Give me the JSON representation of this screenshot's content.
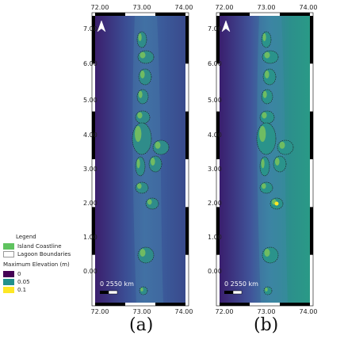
{
  "legend": {
    "title": "Legend",
    "coastline_label": "Island Coastline",
    "lagoon_label": "Lagoon Boundaries",
    "elevation_title": "Maximum Elevation (m)",
    "levels": [
      {
        "label": "0",
        "color": "#440154"
      },
      {
        "label": "0.05",
        "color": "#21918c"
      },
      {
        "label": "0.1",
        "color": "#fde725"
      }
    ],
    "coastline_color": "#5fc35f"
  },
  "axes": {
    "x_ticks": [
      "72.00",
      "73.00",
      "74.00"
    ],
    "y_ticks": [
      "7.00",
      "6.00",
      "5.00",
      "4.00",
      "3.00",
      "2.00",
      "1.00",
      "0.00"
    ]
  },
  "scale_bar": {
    "label": "0  2550 km"
  },
  "panels": [
    {
      "id": "a",
      "label": "(a)"
    },
    {
      "id": "b",
      "label": "(b)"
    }
  ]
}
